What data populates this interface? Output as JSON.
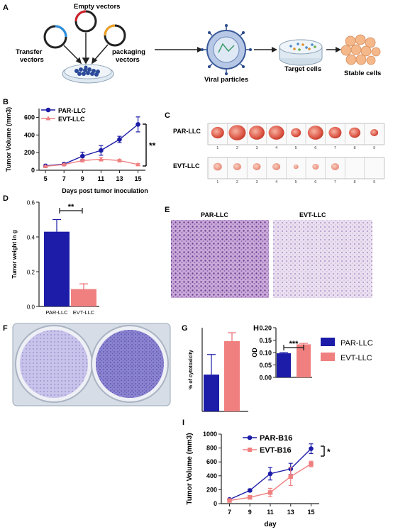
{
  "panel_letters": {
    "a": "A",
    "b": "B",
    "c": "C",
    "d": "D",
    "e": "E",
    "f": "F",
    "g": "G",
    "h": "H",
    "i": "I"
  },
  "panel_a": {
    "empty_vectors": "Empty vectors",
    "transfer_vectors": [
      "Transfer",
      "vectors"
    ],
    "packaging_vectors": [
      "packaging",
      "vectors"
    ],
    "viral_particles": "Viral particles",
    "target_cells": "Target cells",
    "stable_cells": "Stable cells"
  },
  "panel_c": {
    "row1": "PAR-LLC",
    "row2": "EVT-LLC",
    "numbers": [
      "1",
      "2",
      "3",
      "4",
      "5",
      "6",
      "7",
      "8",
      "9"
    ]
  },
  "panel_e": {
    "left": "PAR-LLC",
    "right": "EVT-LLC"
  },
  "colors": {
    "par": "#1c1ca8",
    "evt": "#f08080",
    "evt_dark": "#e9686e"
  },
  "chart_data": [
    {
      "id": "B",
      "type": "line",
      "ylabel": "Tumor Volume (mm3)",
      "xlabel": "Days post tumor inoculation",
      "x": [
        5,
        7,
        9,
        11,
        13,
        15
      ],
      "ylim": [
        0,
        700
      ],
      "yticks": [
        0,
        200,
        400,
        600
      ],
      "series": [
        {
          "name": "PAR-LLC",
          "values": [
            50,
            70,
            160,
            225,
            350,
            520
          ],
          "err": [
            8,
            10,
            45,
            55,
            35,
            85
          ]
        },
        {
          "name": "EVT-LLC",
          "values": [
            45,
            65,
            110,
            125,
            110,
            65
          ],
          "err": [
            6,
            8,
            15,
            20,
            15,
            10
          ]
        }
      ],
      "significance": "**"
    },
    {
      "id": "D",
      "type": "bar",
      "ylabel": "Tumor weight in g",
      "categories": [
        "PAR-LLC",
        "EVT-LLC"
      ],
      "values": [
        0.43,
        0.1
      ],
      "err": [
        0.07,
        0.03
      ],
      "ylim": [
        0,
        0.6
      ],
      "yticks": [
        0.0,
        0.2,
        0.4,
        0.6
      ],
      "significance": "**"
    },
    {
      "id": "G",
      "type": "bar",
      "ylabel": "% of cytotoxicity",
      "categories": [
        "PAR-LLC",
        "EVT-LLC"
      ],
      "values": [
        1.1,
        2.1
      ],
      "err": [
        0.6,
        0.25
      ],
      "ylim": [
        0,
        2.5
      ]
    },
    {
      "id": "H",
      "type": "bar",
      "ylabel": "OD",
      "categories": [
        "PAR-LLC",
        "EVT-LLC"
      ],
      "values": [
        0.097,
        0.133
      ],
      "err": [
        0.003,
        0.004
      ],
      "ylim": [
        0,
        0.2
      ],
      "yticks": [
        "0.00",
        "0.05",
        "0.10",
        "0.15",
        "0.20"
      ],
      "significance": "***",
      "legend": [
        "PAR-LLC",
        "EVT-LLC"
      ]
    },
    {
      "id": "I",
      "type": "line",
      "ylabel": "Tumor Volume (mm3)",
      "xlabel": "day",
      "x": [
        7,
        9,
        11,
        13,
        15
      ],
      "ylim": [
        0,
        1000
      ],
      "yticks": [
        0,
        200,
        400,
        600,
        800,
        1000
      ],
      "series": [
        {
          "name": "PAR-B16",
          "values": [
            60,
            190,
            430,
            500,
            790
          ],
          "err": [
            10,
            20,
            90,
            80,
            70
          ]
        },
        {
          "name": "EVT-B16",
          "values": [
            45,
            90,
            160,
            390,
            570
          ],
          "err": [
            8,
            15,
            60,
            130,
            40
          ]
        }
      ],
      "significance": "*"
    }
  ]
}
